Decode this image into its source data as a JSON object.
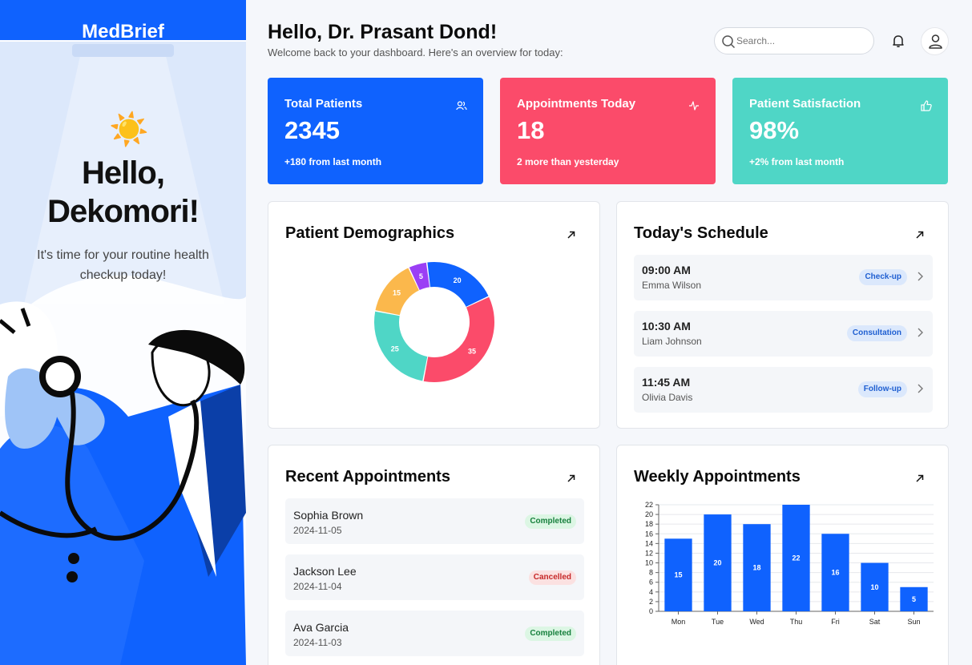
{
  "sidebar": {
    "brand": "MedBrief",
    "greeting_line1": "Hello,",
    "greeting_line2": "Dekomori!",
    "subtitle": "It's time for your routine health checkup today!",
    "sun_icon": "☀️"
  },
  "header": {
    "title": "Hello, Dr. Prasant Dond!",
    "subtitle": "Welcome back to your dashboard. Here's an overview for today:",
    "search_placeholder": "Search..."
  },
  "stats": [
    {
      "label": "Total Patients",
      "value": "2345",
      "delta": "+180 from last month",
      "icon": "users-icon",
      "color": "#0f62fe"
    },
    {
      "label": "Appointments Today",
      "value": "18",
      "delta": "2 more than yesterday",
      "icon": "activity-icon",
      "color": "#fb4b6a"
    },
    {
      "label": "Patient Satisfaction",
      "value": "98%",
      "delta": "+2% from last month",
      "icon": "thumbs-up-icon",
      "color": "#4fd6c6"
    }
  ],
  "demographics": {
    "title": "Patient Demographics"
  },
  "schedule": {
    "title": "Today's Schedule",
    "items": [
      {
        "time": "09:00 AM",
        "name": "Emma Wilson",
        "type": "Check-up"
      },
      {
        "time": "10:30 AM",
        "name": "Liam Johnson",
        "type": "Consultation"
      },
      {
        "time": "11:45 AM",
        "name": "Olivia Davis",
        "type": "Follow-up"
      }
    ]
  },
  "recent": {
    "title": "Recent Appointments",
    "items": [
      {
        "name": "Sophia Brown",
        "date": "2024-11-05",
        "status": "Completed"
      },
      {
        "name": "Jackson Lee",
        "date": "2024-11-04",
        "status": "Cancelled"
      },
      {
        "name": "Ava Garcia",
        "date": "2024-11-03",
        "status": "Completed"
      }
    ]
  },
  "weekly": {
    "title": "Weekly Appointments"
  },
  "chart_data": [
    {
      "type": "pie",
      "donut": true,
      "values": [
        20,
        35,
        25,
        15,
        5
      ],
      "colors": [
        "#0f62fe",
        "#fb4b6a",
        "#4fd6c6",
        "#fbb84c",
        "#9b3ff5"
      ]
    },
    {
      "type": "bar",
      "categories": [
        "Mon",
        "Tue",
        "Wed",
        "Thu",
        "Fri",
        "Sat",
        "Sun"
      ],
      "values": [
        15,
        20,
        18,
        22,
        16,
        10,
        5
      ],
      "ylim": [
        0,
        22
      ],
      "yticks": [
        0,
        2,
        4,
        6,
        8,
        10,
        12,
        14,
        16,
        18,
        20,
        22
      ],
      "grid": true,
      "color": "#0f62fe"
    }
  ]
}
